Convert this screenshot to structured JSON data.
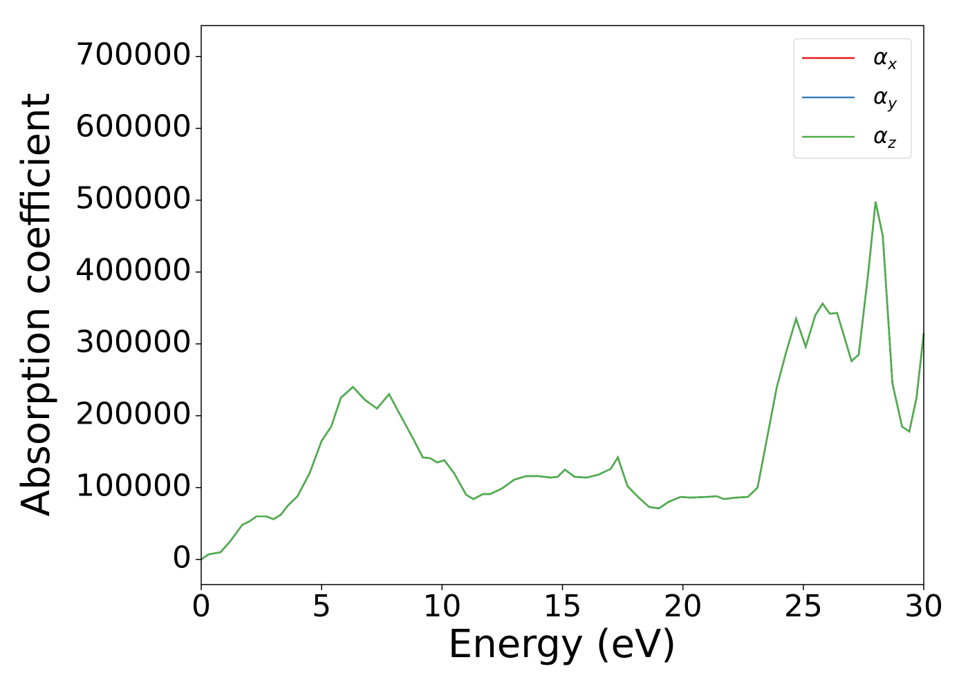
{
  "chart_data": {
    "type": "line",
    "xlabel": "Energy (eV)",
    "ylabel": "Absorption coefficient",
    "x": [
      0,
      0.3,
      0.8,
      1.2,
      1.7,
      2.0,
      2.3,
      2.7,
      3.0,
      3.3,
      3.6,
      4.0,
      4.5,
      5.0,
      5.4,
      5.8,
      6.3,
      6.8,
      7.3,
      7.8,
      8.2,
      8.8,
      9.2,
      9.5,
      9.8,
      10.1,
      10.5,
      11.0,
      11.3,
      11.7,
      12.0,
      12.5,
      13.0,
      13.5,
      14.0,
      14.5,
      14.8,
      15.1,
      15.5,
      16.0,
      16.5,
      17.0,
      17.3,
      17.7,
      18.2,
      18.6,
      19.0,
      19.4,
      19.9,
      20.3,
      21.0,
      21.4,
      21.7,
      22.2,
      22.7,
      23.1,
      23.5,
      23.9,
      24.3,
      24.7,
      25.1,
      25.5,
      25.8,
      26.1,
      26.4,
      26.7,
      27.0,
      27.3,
      27.7,
      28.0,
      28.3,
      28.7,
      29.1,
      29.4,
      29.7,
      30.0
    ],
    "series": [
      {
        "name": "αx",
        "color": "#e41a1c",
        "values": [
          0,
          7000,
          10000,
          25000,
          48000,
          53000,
          60000,
          60000,
          56000,
          62000,
          75000,
          88000,
          120000,
          165000,
          185000,
          225000,
          240000,
          222000,
          210000,
          230000,
          205000,
          168000,
          142000,
          141000,
          135000,
          138000,
          120000,
          90000,
          84000,
          91000,
          91000,
          99000,
          111000,
          116000,
          116000,
          114000,
          115000,
          125000,
          115000,
          114000,
          118000,
          126000,
          142000,
          102000,
          85000,
          73000,
          71000,
          80000,
          87000,
          86000,
          87000,
          88000,
          84000,
          86000,
          87000,
          100000,
          170000,
          240000,
          290000,
          335000,
          296000,
          340000,
          356000,
          342000,
          343000,
          310000,
          276000,
          285000,
          400000,
          498000,
          450000,
          245000,
          185000,
          178000,
          225000,
          315000
        ]
      },
      {
        "name": "αy",
        "color": "#377eb8",
        "values": [
          0,
          7000,
          10000,
          25000,
          48000,
          53000,
          60000,
          60000,
          56000,
          62000,
          75000,
          88000,
          120000,
          165000,
          185000,
          225000,
          240000,
          222000,
          210000,
          230000,
          205000,
          168000,
          142000,
          141000,
          135000,
          138000,
          120000,
          90000,
          84000,
          91000,
          91000,
          99000,
          111000,
          116000,
          116000,
          114000,
          115000,
          125000,
          115000,
          114000,
          118000,
          126000,
          142000,
          102000,
          85000,
          73000,
          71000,
          80000,
          87000,
          86000,
          87000,
          88000,
          84000,
          86000,
          87000,
          100000,
          170000,
          240000,
          290000,
          335000,
          296000,
          340000,
          356000,
          342000,
          343000,
          310000,
          276000,
          285000,
          400000,
          498000,
          450000,
          245000,
          185000,
          178000,
          225000,
          315000
        ]
      },
      {
        "name": "αz",
        "color": "#4daf4a",
        "values": [
          0,
          7000,
          10000,
          25000,
          48000,
          53000,
          60000,
          60000,
          56000,
          62000,
          75000,
          88000,
          120000,
          165000,
          185000,
          225000,
          240000,
          222000,
          210000,
          230000,
          205000,
          168000,
          142000,
          141000,
          135000,
          138000,
          120000,
          90000,
          84000,
          91000,
          91000,
          99000,
          111000,
          116000,
          116000,
          114000,
          115000,
          125000,
          115000,
          114000,
          118000,
          126000,
          142000,
          102000,
          85000,
          73000,
          71000,
          80000,
          87000,
          86000,
          87000,
          88000,
          84000,
          86000,
          87000,
          100000,
          170000,
          240000,
          290000,
          335000,
          296000,
          340000,
          356000,
          342000,
          343000,
          310000,
          276000,
          285000,
          400000,
          498000,
          450000,
          245000,
          185000,
          178000,
          225000,
          315000
        ]
      }
    ],
    "xlim": [
      0,
      30
    ],
    "xticks": [
      0,
      5,
      10,
      15,
      20,
      25,
      30
    ],
    "ylim": [
      -35000,
      743000
    ],
    "yticks": [
      0,
      100000,
      200000,
      300000,
      400000,
      500000,
      600000,
      700000
    ],
    "grid": false,
    "legend": "upper right"
  }
}
